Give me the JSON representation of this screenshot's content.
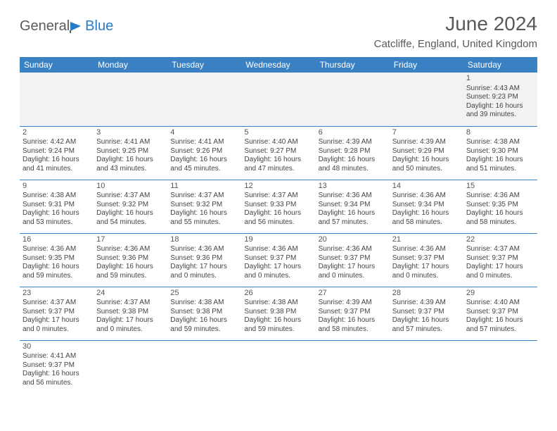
{
  "logo": {
    "part1": "General",
    "part2": "Blue"
  },
  "title": "June 2024",
  "location": "Catcliffe, England, United Kingdom",
  "colors": {
    "header_bg": "#3a81c3",
    "header_text": "#ffffff",
    "grid_line": "#3a81c3",
    "week0_bg": "#f2f2f2",
    "title_color": "#595959",
    "logo_gray": "#5c5c5c",
    "logo_blue": "#2a7aca"
  },
  "day_headers": [
    "Sunday",
    "Monday",
    "Tuesday",
    "Wednesday",
    "Thursday",
    "Friday",
    "Saturday"
  ],
  "weeks": [
    [
      null,
      null,
      null,
      null,
      null,
      null,
      {
        "n": "1",
        "sr": "Sunrise: 4:43 AM",
        "ss": "Sunset: 9:23 PM",
        "dl": "Daylight: 16 hours and 39 minutes."
      }
    ],
    [
      {
        "n": "2",
        "sr": "Sunrise: 4:42 AM",
        "ss": "Sunset: 9:24 PM",
        "dl": "Daylight: 16 hours and 41 minutes."
      },
      {
        "n": "3",
        "sr": "Sunrise: 4:41 AM",
        "ss": "Sunset: 9:25 PM",
        "dl": "Daylight: 16 hours and 43 minutes."
      },
      {
        "n": "4",
        "sr": "Sunrise: 4:41 AM",
        "ss": "Sunset: 9:26 PM",
        "dl": "Daylight: 16 hours and 45 minutes."
      },
      {
        "n": "5",
        "sr": "Sunrise: 4:40 AM",
        "ss": "Sunset: 9:27 PM",
        "dl": "Daylight: 16 hours and 47 minutes."
      },
      {
        "n": "6",
        "sr": "Sunrise: 4:39 AM",
        "ss": "Sunset: 9:28 PM",
        "dl": "Daylight: 16 hours and 48 minutes."
      },
      {
        "n": "7",
        "sr": "Sunrise: 4:39 AM",
        "ss": "Sunset: 9:29 PM",
        "dl": "Daylight: 16 hours and 50 minutes."
      },
      {
        "n": "8",
        "sr": "Sunrise: 4:38 AM",
        "ss": "Sunset: 9:30 PM",
        "dl": "Daylight: 16 hours and 51 minutes."
      }
    ],
    [
      {
        "n": "9",
        "sr": "Sunrise: 4:38 AM",
        "ss": "Sunset: 9:31 PM",
        "dl": "Daylight: 16 hours and 53 minutes."
      },
      {
        "n": "10",
        "sr": "Sunrise: 4:37 AM",
        "ss": "Sunset: 9:32 PM",
        "dl": "Daylight: 16 hours and 54 minutes."
      },
      {
        "n": "11",
        "sr": "Sunrise: 4:37 AM",
        "ss": "Sunset: 9:32 PM",
        "dl": "Daylight: 16 hours and 55 minutes."
      },
      {
        "n": "12",
        "sr": "Sunrise: 4:37 AM",
        "ss": "Sunset: 9:33 PM",
        "dl": "Daylight: 16 hours and 56 minutes."
      },
      {
        "n": "13",
        "sr": "Sunrise: 4:36 AM",
        "ss": "Sunset: 9:34 PM",
        "dl": "Daylight: 16 hours and 57 minutes."
      },
      {
        "n": "14",
        "sr": "Sunrise: 4:36 AM",
        "ss": "Sunset: 9:34 PM",
        "dl": "Daylight: 16 hours and 58 minutes."
      },
      {
        "n": "15",
        "sr": "Sunrise: 4:36 AM",
        "ss": "Sunset: 9:35 PM",
        "dl": "Daylight: 16 hours and 58 minutes."
      }
    ],
    [
      {
        "n": "16",
        "sr": "Sunrise: 4:36 AM",
        "ss": "Sunset: 9:35 PM",
        "dl": "Daylight: 16 hours and 59 minutes."
      },
      {
        "n": "17",
        "sr": "Sunrise: 4:36 AM",
        "ss": "Sunset: 9:36 PM",
        "dl": "Daylight: 16 hours and 59 minutes."
      },
      {
        "n": "18",
        "sr": "Sunrise: 4:36 AM",
        "ss": "Sunset: 9:36 PM",
        "dl": "Daylight: 17 hours and 0 minutes."
      },
      {
        "n": "19",
        "sr": "Sunrise: 4:36 AM",
        "ss": "Sunset: 9:37 PM",
        "dl": "Daylight: 17 hours and 0 minutes."
      },
      {
        "n": "20",
        "sr": "Sunrise: 4:36 AM",
        "ss": "Sunset: 9:37 PM",
        "dl": "Daylight: 17 hours and 0 minutes."
      },
      {
        "n": "21",
        "sr": "Sunrise: 4:36 AM",
        "ss": "Sunset: 9:37 PM",
        "dl": "Daylight: 17 hours and 0 minutes."
      },
      {
        "n": "22",
        "sr": "Sunrise: 4:37 AM",
        "ss": "Sunset: 9:37 PM",
        "dl": "Daylight: 17 hours and 0 minutes."
      }
    ],
    [
      {
        "n": "23",
        "sr": "Sunrise: 4:37 AM",
        "ss": "Sunset: 9:37 PM",
        "dl": "Daylight: 17 hours and 0 minutes."
      },
      {
        "n": "24",
        "sr": "Sunrise: 4:37 AM",
        "ss": "Sunset: 9:38 PM",
        "dl": "Daylight: 17 hours and 0 minutes."
      },
      {
        "n": "25",
        "sr": "Sunrise: 4:38 AM",
        "ss": "Sunset: 9:38 PM",
        "dl": "Daylight: 16 hours and 59 minutes."
      },
      {
        "n": "26",
        "sr": "Sunrise: 4:38 AM",
        "ss": "Sunset: 9:38 PM",
        "dl": "Daylight: 16 hours and 59 minutes."
      },
      {
        "n": "27",
        "sr": "Sunrise: 4:39 AM",
        "ss": "Sunset: 9:37 PM",
        "dl": "Daylight: 16 hours and 58 minutes."
      },
      {
        "n": "28",
        "sr": "Sunrise: 4:39 AM",
        "ss": "Sunset: 9:37 PM",
        "dl": "Daylight: 16 hours and 57 minutes."
      },
      {
        "n": "29",
        "sr": "Sunrise: 4:40 AM",
        "ss": "Sunset: 9:37 PM",
        "dl": "Daylight: 16 hours and 57 minutes."
      }
    ],
    [
      {
        "n": "30",
        "sr": "Sunrise: 4:41 AM",
        "ss": "Sunset: 9:37 PM",
        "dl": "Daylight: 16 hours and 56 minutes."
      },
      null,
      null,
      null,
      null,
      null,
      null
    ]
  ]
}
